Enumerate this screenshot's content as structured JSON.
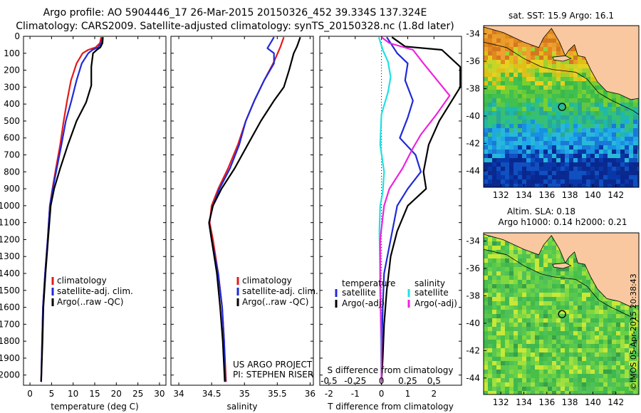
{
  "titles": {
    "line1": "Argo profile: AO 5904446_17 26-Mar-2015 20150326_452 39.334S 137.324E",
    "line2": "Climatology: CARS2009. Satellite-adjusted climatology: synTS_20150328.nc (1.8d later)"
  },
  "colors": {
    "climatology": "#e41a1c",
    "satellite": "#1f2bd6",
    "argo": "#000000",
    "cyan": "#22e0e0",
    "magenta": "#ee22dd"
  },
  "chart_data": [
    {
      "type": "line",
      "panel": "temperature",
      "xlabel": "temperature (deg C)",
      "xlim": [
        -1.5,
        31.5
      ],
      "ylim": [
        0,
        2060
      ],
      "xticks": [
        "0",
        "5",
        "10",
        "15",
        "20",
        "25",
        "30"
      ],
      "yticks": [
        "0",
        "100",
        "200",
        "300",
        "400",
        "500",
        "600",
        "700",
        "800",
        "900",
        "1000",
        "1100",
        "1200",
        "1300",
        "1400",
        "1500",
        "1600",
        "1700",
        "1800",
        "1900",
        "2000"
      ],
      "legend": [
        "climatology",
        "satellite-adj. clim.",
        "Argo(..raw -QC)"
      ],
      "series": [
        {
          "name": "climatology",
          "color": "#e41a1c",
          "points": [
            [
              16.5,
              5
            ],
            [
              16.2,
              40
            ],
            [
              15.2,
              65
            ],
            [
              13.5,
              80
            ],
            [
              12.2,
              100
            ],
            [
              10.8,
              160
            ],
            [
              9.5,
              260
            ],
            [
              8.6,
              380
            ],
            [
              7.8,
              500
            ],
            [
              7.0,
              640
            ],
            [
              6.0,
              780
            ],
            [
              5.2,
              900
            ],
            [
              4.6,
              1000
            ],
            [
              4.1,
              1200
            ],
            [
              3.5,
              1400
            ],
            [
              3.0,
              1600
            ],
            [
              2.8,
              1800
            ],
            [
              2.6,
              2040
            ]
          ]
        },
        {
          "name": "satellite-adj. clim.",
          "color": "#1f2bd6",
          "points": [
            [
              16.8,
              5
            ],
            [
              16.5,
              40
            ],
            [
              15.8,
              65
            ],
            [
              14.5,
              80
            ],
            [
              13.5,
              100
            ],
            [
              12.0,
              160
            ],
            [
              10.8,
              260
            ],
            [
              9.6,
              380
            ],
            [
              8.3,
              500
            ],
            [
              7.3,
              640
            ],
            [
              6.2,
              780
            ],
            [
              5.3,
              900
            ],
            [
              4.6,
              1000
            ],
            [
              4.1,
              1200
            ],
            [
              3.5,
              1400
            ],
            [
              3.0,
              1600
            ],
            [
              2.8,
              1800
            ],
            [
              2.6,
              2040
            ]
          ]
        },
        {
          "name": "Argo(..raw -QC)",
          "color": "#000000",
          "points": [
            [
              16.9,
              5
            ],
            [
              16.8,
              40
            ],
            [
              16.3,
              65
            ],
            [
              15.5,
              80
            ],
            [
              14.6,
              100
            ],
            [
              14.2,
              180
            ],
            [
              14.2,
              290
            ],
            [
              13.0,
              390
            ],
            [
              10.8,
              500
            ],
            [
              8.8,
              640
            ],
            [
              7.0,
              780
            ],
            [
              5.6,
              900
            ],
            [
              4.8,
              1000
            ],
            [
              4.2,
              1200
            ],
            [
              3.6,
              1400
            ],
            [
              3.1,
              1600
            ],
            [
              2.9,
              1800
            ],
            [
              2.6,
              2040
            ]
          ]
        }
      ]
    },
    {
      "type": "line",
      "panel": "salinity",
      "xlabel": "salinity",
      "xlim": [
        33.88,
        36.05
      ],
      "ylim": [
        0,
        2060
      ],
      "xticks": [
        "34",
        "34.5",
        "35",
        "35.5",
        "36"
      ],
      "legend": [
        "climatology",
        "satellite-adj. clim.",
        "Argo(..raw -QC)"
      ],
      "annotation": [
        "US ARGO PROJECT",
        "PI: STEPHEN RISER"
      ],
      "series": [
        {
          "name": "climatology",
          "color": "#e41a1c",
          "points": [
            [
              35.6,
              5
            ],
            [
              35.55,
              60
            ],
            [
              35.45,
              150
            ],
            [
              35.3,
              260
            ],
            [
              35.15,
              380
            ],
            [
              35.02,
              500
            ],
            [
              34.9,
              640
            ],
            [
              34.75,
              780
            ],
            [
              34.6,
              900
            ],
            [
              34.5,
              1000
            ],
            [
              34.47,
              1100
            ],
            [
              34.52,
              1200
            ],
            [
              34.6,
              1400
            ],
            [
              34.66,
              1600
            ],
            [
              34.69,
              1800
            ],
            [
              34.72,
              2040
            ]
          ]
        },
        {
          "name": "satellite-adj. clim.",
          "color": "#1f2bd6",
          "points": [
            [
              35.45,
              5
            ],
            [
              35.35,
              70
            ],
            [
              35.45,
              100
            ],
            [
              35.45,
              160
            ],
            [
              35.3,
              260
            ],
            [
              35.15,
              380
            ],
            [
              35.02,
              500
            ],
            [
              34.92,
              640
            ],
            [
              34.78,
              780
            ],
            [
              34.62,
              900
            ],
            [
              34.52,
              1000
            ],
            [
              34.46,
              1100
            ],
            [
              34.5,
              1200
            ],
            [
              34.6,
              1400
            ],
            [
              34.66,
              1600
            ],
            [
              34.69,
              1800
            ],
            [
              34.71,
              2040
            ]
          ]
        },
        {
          "name": "Argo(..raw -QC)",
          "color": "#000000",
          "points": [
            [
              35.85,
              5
            ],
            [
              35.8,
              60
            ],
            [
              35.75,
              100
            ],
            [
              35.68,
              200
            ],
            [
              35.6,
              300
            ],
            [
              35.45,
              380
            ],
            [
              35.25,
              500
            ],
            [
              35.05,
              640
            ],
            [
              34.85,
              780
            ],
            [
              34.65,
              900
            ],
            [
              34.52,
              1000
            ],
            [
              34.46,
              1100
            ],
            [
              34.5,
              1200
            ],
            [
              34.58,
              1400
            ],
            [
              34.63,
              1600
            ],
            [
              34.67,
              1800
            ],
            [
              34.7,
              2040
            ]
          ]
        }
      ]
    },
    {
      "type": "line",
      "panel": "difference",
      "xlabel": "T difference from climatology",
      "xlabel_top": "S difference from climatology",
      "xlim": [
        -2.35,
        3.05
      ],
      "ylim": [
        0,
        2060
      ],
      "xticks": [
        "-2",
        "-1",
        "0",
        "1",
        "2"
      ],
      "xticks_top": [
        "-0.5",
        "-0.25",
        "0",
        "0.25",
        "0.5"
      ],
      "legend": {
        "temperature": "temperature",
        "salinity": "salinity",
        "satellite": "satellite",
        "argo": "Argo(-adj)"
      },
      "series": [
        {
          "name": "temperature satellite",
          "color": "#1f2bd6",
          "points": [
            [
              0.2,
              5
            ],
            [
              0.6,
              100
            ],
            [
              1.0,
              160
            ],
            [
              0.9,
              260
            ],
            [
              1.2,
              380
            ],
            [
              1.0,
              480
            ],
            [
              0.7,
              600
            ],
            [
              1.3,
              700
            ],
            [
              1.5,
              800
            ],
            [
              1.0,
              900
            ],
            [
              0.6,
              1000
            ],
            [
              0.35,
              1200
            ],
            [
              0.1,
              1400
            ],
            [
              0.05,
              1600
            ],
            [
              0.02,
              1800
            ],
            [
              0.0,
              2040
            ]
          ]
        },
        {
          "name": "temperature Argo(-adj)",
          "color": "#000000",
          "points": [
            [
              0.4,
              5
            ],
            [
              0.9,
              60
            ],
            [
              2.3,
              80
            ],
            [
              3.0,
              180
            ],
            [
              3.0,
              300
            ],
            [
              2.2,
              500
            ],
            [
              1.8,
              640
            ],
            [
              1.6,
              800
            ],
            [
              1.7,
              900
            ],
            [
              1.0,
              1000
            ],
            [
              0.6,
              1150
            ],
            [
              0.35,
              1300
            ],
            [
              0.2,
              1500
            ],
            [
              0.1,
              1700
            ],
            [
              0.05,
              1900
            ],
            [
              0.0,
              2040
            ]
          ]
        },
        {
          "name": "salinity satellite",
          "color": "#22e0e0",
          "points": [
            [
              -0.1,
              5
            ],
            [
              0.05,
              80
            ],
            [
              0.25,
              150
            ],
            [
              0.35,
              240
            ],
            [
              0.25,
              330
            ],
            [
              0.0,
              460
            ],
            [
              -0.05,
              640
            ],
            [
              0.1,
              800
            ],
            [
              0.05,
              920
            ],
            [
              -0.05,
              1000
            ],
            [
              -0.08,
              1150
            ],
            [
              -0.05,
              1400
            ],
            [
              -0.03,
              1700
            ],
            [
              0.0,
              2040
            ]
          ]
        },
        {
          "name": "salinity Argo(-adj)",
          "color": "#ee22dd",
          "points": [
            [
              0.0,
              5
            ],
            [
              0.3,
              40
            ],
            [
              1.2,
              80
            ],
            [
              1.6,
              160
            ],
            [
              2.6,
              350
            ],
            [
              2.1,
              460
            ],
            [
              1.5,
              580
            ],
            [
              1.2,
              660
            ],
            [
              0.8,
              780
            ],
            [
              0.3,
              900
            ],
            [
              0.1,
              1000
            ],
            [
              -0.05,
              1200
            ],
            [
              -0.05,
              1500
            ],
            [
              0.0,
              1800
            ],
            [
              0.0,
              2040
            ]
          ]
        }
      ]
    },
    {
      "type": "heatmap",
      "panel": "sst-map",
      "title": "sat. SST: 15.9 Argo: 16.1",
      "xticks": [
        "132",
        "134",
        "136",
        "138",
        "140",
        "142"
      ],
      "yticks": [
        "-34",
        "-36",
        "-38",
        "-40",
        "-42",
        "-44"
      ],
      "xlim": [
        130.5,
        144.0
      ],
      "ylim": [
        -45.2,
        -33.4
      ],
      "marker": [
        137.324,
        -39.334
      ]
    },
    {
      "type": "heatmap",
      "panel": "sla-map",
      "title": [
        "Altim. SLA: 0.18",
        "Argo h1000: 0.14 h2000: 0.21"
      ],
      "xticks": [
        "132",
        "134",
        "136",
        "138",
        "140",
        "142"
      ],
      "yticks": [
        "-34",
        "-36",
        "-38",
        "-40",
        "-42",
        "-44"
      ],
      "xlim": [
        130.5,
        144.0
      ],
      "ylim": [
        -45.2,
        -33.4
      ],
      "marker": [
        137.324,
        -39.334
      ],
      "side_label": "©IMOS 05-Apr-2015 20:38:43"
    }
  ]
}
